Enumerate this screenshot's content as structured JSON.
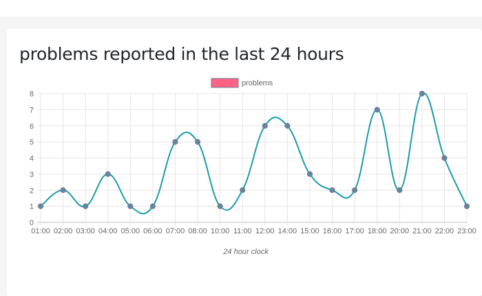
{
  "title": "problems reported in the last 24 hours",
  "chart_data": {
    "type": "line",
    "title": "problems reported in the last 24 hours",
    "xlabel": "24 hour clock",
    "ylabel": "",
    "ylim": [
      0,
      8
    ],
    "yticks": [
      "0",
      "1",
      "2",
      "3",
      "4",
      "5",
      "6",
      "7",
      "8"
    ],
    "grid": true,
    "legend_placement": "top",
    "categories": [
      "01:00",
      "02:00",
      "03:00",
      "04:00",
      "05:00",
      "06:00",
      "07:00",
      "08:00",
      "10:00",
      "11:00",
      "12:00",
      "14:00",
      "15:00",
      "16:00",
      "17:00",
      "18:00",
      "20:00",
      "21:00",
      "22:00",
      "23:00"
    ],
    "series": [
      {
        "name": "problems",
        "values": [
          1,
          2,
          1,
          3,
          1,
          1,
          5,
          5,
          1,
          2,
          6,
          6,
          3,
          2,
          2,
          7,
          2,
          8,
          4,
          1
        ],
        "line_color": "#1a9ba8",
        "legend_color": "#ff6384",
        "point_color": "#4f8f9f",
        "point_border": "#8a6d95"
      }
    ]
  }
}
